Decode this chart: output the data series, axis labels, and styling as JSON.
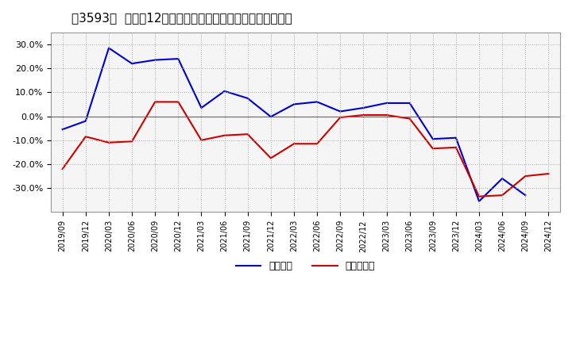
{
  "title": "［3593］  利益の12か月移動合計の対前年同期増減率の推移",
  "x_labels": [
    "2019/09",
    "2019/12",
    "2020/03",
    "2020/06",
    "2020/09",
    "2020/12",
    "2021/03",
    "2021/06",
    "2021/09",
    "2021/12",
    "2022/03",
    "2022/06",
    "2022/09",
    "2022/12",
    "2023/03",
    "2023/06",
    "2023/09",
    "2023/12",
    "2024/03",
    "2024/06",
    "2024/09",
    "2024/12"
  ],
  "blue_values": [
    -5.5,
    -2.0,
    28.5,
    22.0,
    23.5,
    24.0,
    3.5,
    10.5,
    7.5,
    -0.2,
    5.0,
    6.0,
    2.0,
    3.5,
    5.5,
    5.5,
    -9.5,
    -9.0,
    -35.5,
    -26.0,
    -33.0,
    null
  ],
  "red_values": [
    -22.0,
    -8.5,
    -11.0,
    -10.5,
    6.0,
    6.0,
    -10.0,
    -8.0,
    -7.5,
    -17.5,
    -11.5,
    -11.5,
    -0.5,
    0.5,
    0.5,
    -1.0,
    -13.5,
    -13.0,
    -33.5,
    -33.0,
    -25.0,
    -24.0
  ],
  "blue_color": "#0000cc",
  "red_color": "#cc0000",
  "ylim": [
    -40,
    35
  ],
  "yticks": [
    -30,
    -20,
    -10,
    0,
    10,
    20,
    30
  ],
  "background_color": "#ffffff",
  "plot_bg_color": "#f5f5f5",
  "grid_color": "#aaaaaa",
  "legend_labels": [
    "経常利益",
    "当期純利益"
  ]
}
